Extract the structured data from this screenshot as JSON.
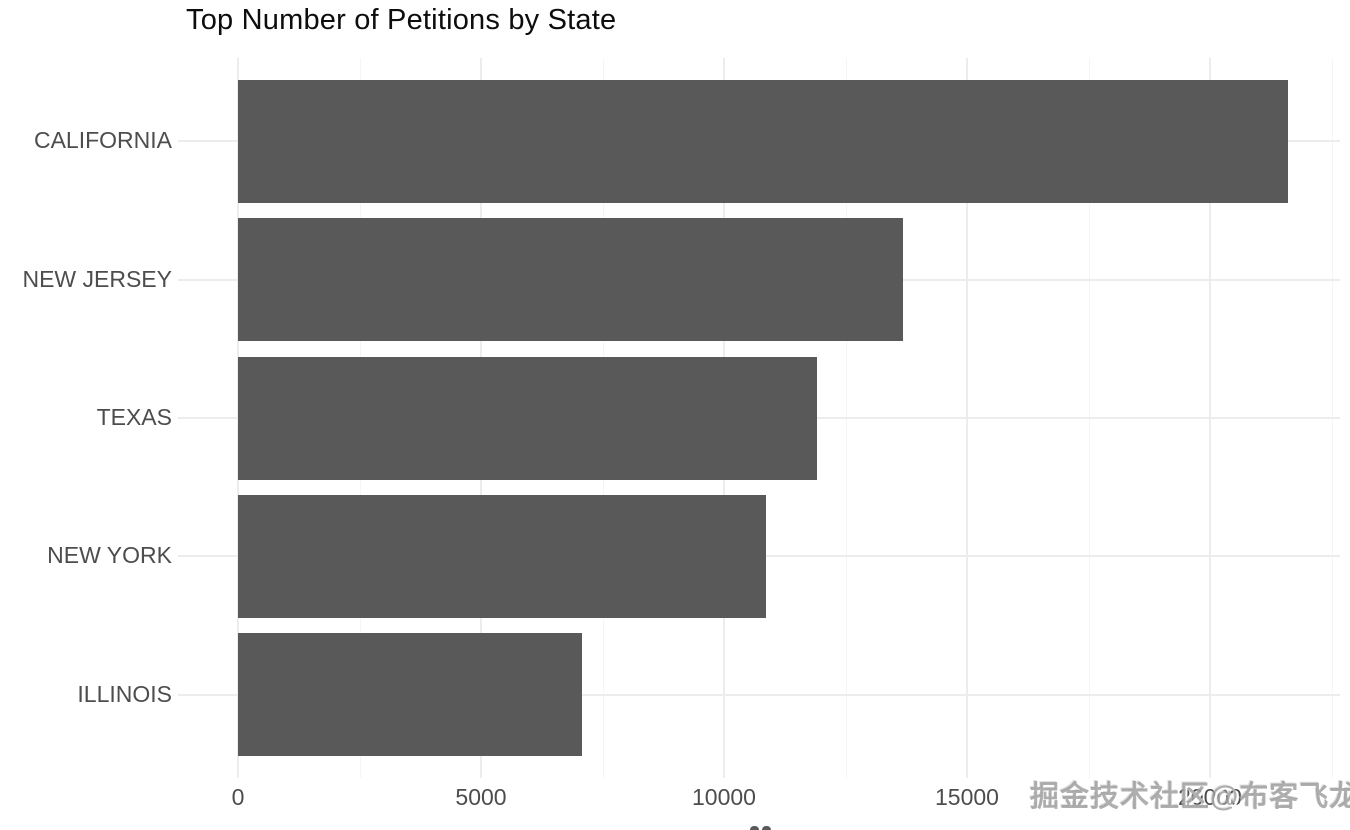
{
  "chart_data": {
    "type": "bar",
    "orientation": "horizontal",
    "title": "Top Number of Petitions by State",
    "categories": [
      "CALIFORNIA",
      "NEW JERSEY",
      "TEXAS",
      "NEW YORK",
      "ILLINOIS"
    ],
    "values": [
      21600,
      13690,
      11920,
      10860,
      7080
    ],
    "xlabel": "",
    "ylabel": "",
    "xlim": [
      0,
      22700
    ],
    "x_major_ticks": [
      0,
      5000,
      10000,
      15000,
      20000
    ],
    "x_major_tick_labels": [
      "0",
      "5000",
      "10000",
      "15000",
      "20000"
    ],
    "x_minor_ticks": [
      2500,
      7500,
      12500,
      17500,
      22500
    ],
    "grid": true,
    "legend": "none",
    "bar_color": "#595959",
    "axis_text_color": "#4d4d4d",
    "major_grid_color": "#ececec",
    "minor_grid_color": "#f5f5f5",
    "background": "#ffffff"
  },
  "watermark": {
    "text": "掘金技术社区@布客飞龙"
  }
}
